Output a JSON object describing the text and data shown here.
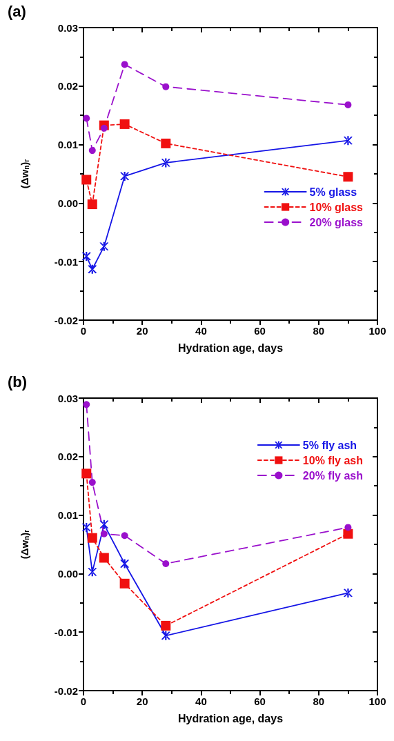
{
  "chart_data": [
    {
      "type": "line",
      "title": "(a)",
      "xlabel": "Hydration age, days",
      "ylabel": "(Δw$_{n}$)$_{r}$",
      "x": [
        1,
        3,
        7,
        14,
        28,
        90
      ],
      "series": [
        {
          "name": "5% glass",
          "color": "#1515e6",
          "marker": "cross",
          "line_style": "solid",
          "values": [
            -0.0091,
            -0.0113,
            -0.0074,
            0.0046,
            0.0069,
            0.0107
          ]
        },
        {
          "name": "10% glass",
          "color": "#f01010",
          "marker": "square",
          "line_style": "dashed",
          "values": [
            0.004,
            -0.0002,
            0.0133,
            0.0135,
            0.0102,
            0.0045
          ]
        },
        {
          "name": "20% glass",
          "color": "#9a10cc",
          "marker": "circle",
          "line_style": "longdash",
          "values": [
            0.0145,
            0.009,
            0.0128,
            0.0237,
            0.0199,
            0.0168
          ]
        }
      ],
      "xlim": [
        0,
        100
      ],
      "xticks": [
        0,
        20,
        40,
        60,
        80,
        100
      ],
      "ylim": [
        -0.02,
        0.03
      ],
      "yticks": [
        {
          "value": -0.02,
          "label": "-0.02"
        },
        {
          "value": -0.01,
          "label": "-0.01"
        },
        {
          "value": 0,
          "label": "0.00"
        },
        {
          "value": 0.01,
          "label": "0.01"
        },
        {
          "value": 0.02,
          "label": "0.02"
        },
        {
          "value": 0.03,
          "label": "0.03"
        }
      ],
      "grid": false,
      "legend": "right"
    },
    {
      "type": "line",
      "title": "(b)",
      "xlabel": "Hydration age, days",
      "ylabel": "(Δw$_{n}$)$_{r}$",
      "x": [
        1,
        3,
        7,
        14,
        28,
        90
      ],
      "series": [
        {
          "name": "5% fly ash",
          "color": "#1515e6",
          "marker": "cross",
          "line_style": "solid",
          "values": [
            0.0079,
            0.0003,
            0.0084,
            0.0017,
            -0.0106,
            -0.0033
          ]
        },
        {
          "name": "10% fly ash",
          "color": "#f01010",
          "marker": "square",
          "line_style": "dashed",
          "values": [
            0.0171,
            0.0061,
            0.0027,
            -0.0017,
            -0.0089,
            0.0068
          ]
        },
        {
          "name": "20% fly ash",
          "color": "#9a10cc",
          "marker": "circle",
          "line_style": "longdash",
          "values": [
            0.0289,
            0.0156,
            0.0068,
            0.0065,
            0.0017,
            0.0079
          ]
        }
      ],
      "xlim": [
        0,
        100
      ],
      "xticks": [
        0,
        20,
        40,
        60,
        80,
        100
      ],
      "ylim": [
        -0.02,
        0.03
      ],
      "yticks": [
        {
          "value": -0.02,
          "label": "-0.02"
        },
        {
          "value": -0.01,
          "label": "-0.01"
        },
        {
          "value": 0,
          "label": "0.00"
        },
        {
          "value": 0.01,
          "label": "0.01"
        },
        {
          "value": 0.02,
          "label": "0.02"
        },
        {
          "value": 0.03,
          "label": "0.03"
        }
      ],
      "grid": false,
      "legend": "top right"
    }
  ]
}
